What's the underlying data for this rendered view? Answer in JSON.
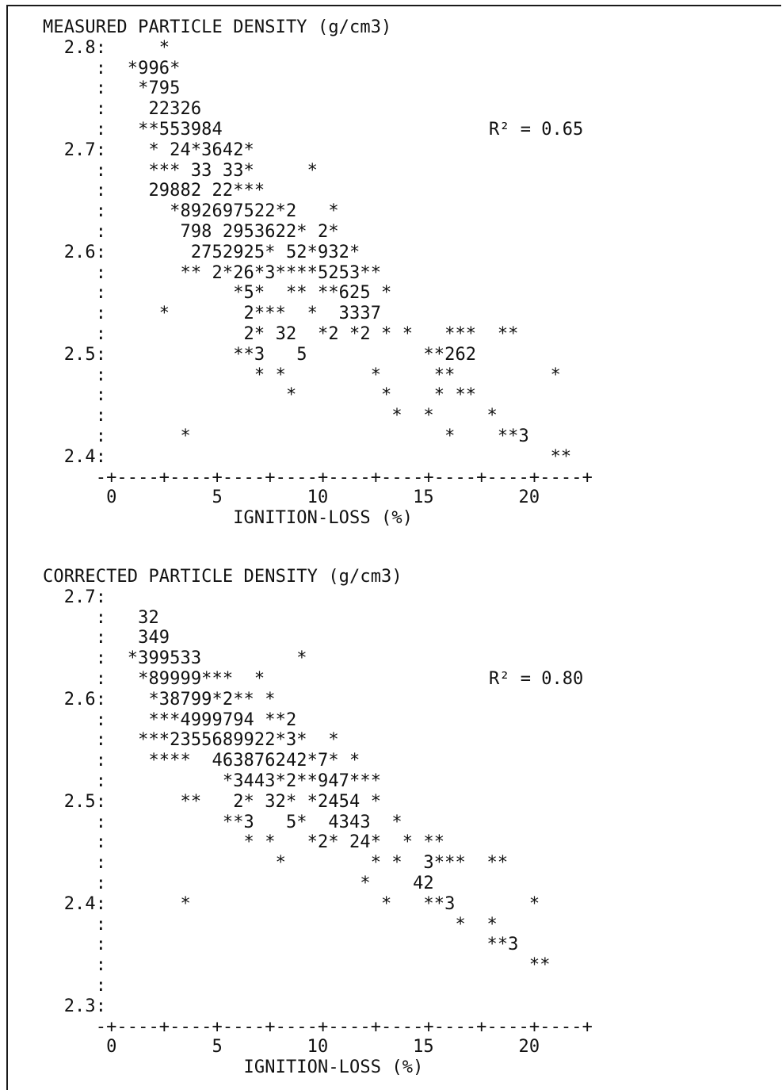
{
  "chart_data": [
    {
      "type": "scatter",
      "title": "MEASURED PARTICLE DENSITY (g/cm3)",
      "xlabel": "IGNITION-LOSS (%)",
      "ylabel": "MEASURED PARTICLE DENSITY (g/cm3)",
      "xlim": [
        0,
        22.5
      ],
      "ylim": [
        2.4,
        2.8
      ],
      "x_ticks": [
        "0",
        "5",
        "10",
        "15",
        "20"
      ],
      "y_ticks": [
        "2.8",
        "2.7",
        "2.6",
        "2.5",
        "2.4"
      ],
      "annotation": "R² = 0.65",
      "r_squared": 0.65,
      "plot_rows": [
        "  2.8:     *",
        "     :  *996*",
        "     :   *795",
        "     :    22326",
        "     :   **553984",
        "  2.7:    * 24*3642*",
        "     :    *** 33 33*     *",
        "     :    29882 22***",
        "     :      *892697522*2   *",
        "     :       798 2953622* 2*",
        "  2.6:        2752925* 52*932*",
        "     :       ** 2*26*3****5253**",
        "     :            *5*  ** **625 *",
        "     :     *       2***  *  3337",
        "     :             2* 32  *2 *2 * *   ***  **",
        "  2.5:            **3   5           **262",
        "     :              * *        *     **         *",
        "     :                 *        *    * **",
        "     :                           *  *     *",
        "     :       *                        *    **3",
        "  2.4:                                          **",
        "     -+----+----+----+----+----+----+----+----+----+",
        "      0         5        10        15        20",
        "                  IGNITION-LOSS (%)"
      ]
    },
    {
      "type": "scatter",
      "title": "CORRECTED PARTICLE DENSITY (g/cm3)",
      "xlabel": "IGNITION-LOSS (%)",
      "ylabel": "CORRECTED PARTICLE DENSITY (g/cm3)",
      "xlim": [
        0,
        22.5
      ],
      "ylim": [
        2.3,
        2.7
      ],
      "x_ticks": [
        "0",
        "5",
        "10",
        "15",
        "20"
      ],
      "y_ticks": [
        "2.7",
        "2.6",
        "2.5",
        "2.4",
        "2.3"
      ],
      "annotation": "R² = 0.80",
      "r_squared": 0.8,
      "plot_rows": [
        "  2.7:",
        "     :   32",
        "     :   349",
        "     :  *399533         *",
        "     :   *89999***  *",
        "  2.6:    *38799*2** *",
        "     :    ***4999794 **2",
        "     :   ***2355689922*3*  *",
        "     :    ****  463876242*7* *",
        "     :           *3443*2**947***",
        "  2.5:       **   2* 32* *2454 *",
        "     :           **3   5*  4343  *",
        "     :             * *   *2* 24*  * **",
        "     :                *        * *  3***  **",
        "     :                        *    42",
        "  2.4:       *                  *   **3       *",
        "     :                                 *  *",
        "     :                                    **3",
        "     :                                        **",
        "     :",
        "  2.3:",
        "     -+----+----+----+----+----+----+----+----+----+",
        "      0         5        10        15        20",
        "                   IGNITION-LOSS (%)"
      ]
    }
  ]
}
